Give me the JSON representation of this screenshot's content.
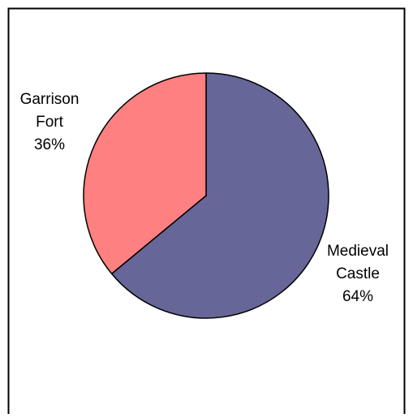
{
  "chart_data": {
    "type": "pie",
    "title": "",
    "start_angle_deg": 0,
    "direction": "clockwise",
    "slices": [
      {
        "label_lines": [
          "Medieval",
          "Castle",
          "64%"
        ],
        "value": 64,
        "color": "#666699"
      },
      {
        "label_lines": [
          "Garrison",
          "Fort",
          "36%"
        ],
        "value": 36,
        "color": "#FF8080"
      }
    ],
    "legend": "none",
    "border_color": "#000000"
  }
}
